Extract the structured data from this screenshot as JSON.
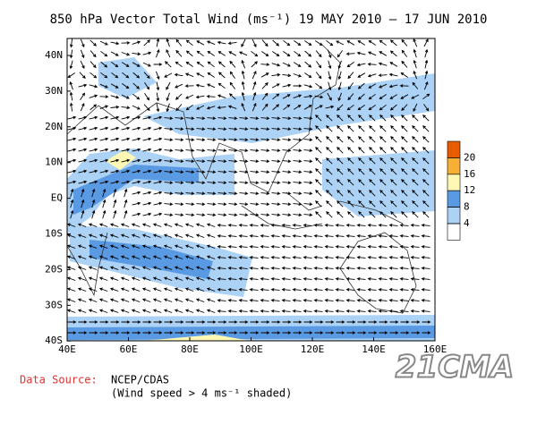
{
  "title": "850 hPa Vector Total Wind (ms⁻¹) 19 MAY 2010 — 17 JUN 2010",
  "lat_labels": [
    "40N",
    "30N",
    "20N",
    "10N",
    "EQ",
    "10S",
    "20S",
    "30S",
    "40S"
  ],
  "lon_labels": [
    "40E",
    "60E",
    "80E",
    "100E",
    "120E",
    "140E",
    "160E"
  ],
  "colorbar": {
    "levels": [
      20,
      16,
      12,
      8,
      4
    ],
    "colors": [
      "#e85c00",
      "#f7b035",
      "#fff8b4",
      "#5a9ae2",
      "#acd2f6",
      "#ffffff"
    ]
  },
  "footer": {
    "source_label": "Data Source:",
    "source": "NCEP/CDAS",
    "note": "(Wind speed > 4 ms⁻¹ shaded)"
  },
  "watermark": "21CMA"
}
